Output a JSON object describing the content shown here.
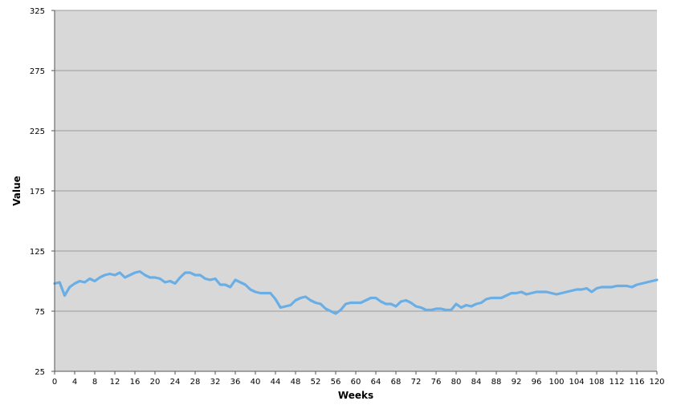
{
  "chart_data": {
    "type": "line",
    "title": "",
    "xlabel": "Weeks",
    "ylabel": "Value",
    "xlim": [
      0,
      120
    ],
    "ylim": [
      25,
      325
    ],
    "xticks": [
      0,
      4,
      8,
      12,
      16,
      20,
      24,
      28,
      32,
      36,
      40,
      44,
      48,
      52,
      56,
      60,
      64,
      68,
      72,
      76,
      80,
      84,
      88,
      92,
      96,
      100,
      104,
      108,
      112,
      116,
      120
    ],
    "yticks": [
      25,
      75,
      125,
      175,
      225,
      275,
      325
    ],
    "grid": "horizontal",
    "legend": "none",
    "colors": {
      "plot_background": "#d8d8d8",
      "line": "#6aaee6",
      "grid": "#9a9a9a"
    },
    "series": [
      {
        "name": "",
        "x": [
          0,
          1,
          2,
          3,
          4,
          5,
          6,
          7,
          8,
          9,
          10,
          11,
          12,
          13,
          14,
          15,
          16,
          17,
          18,
          19,
          20,
          21,
          22,
          23,
          24,
          25,
          26,
          27,
          28,
          29,
          30,
          31,
          32,
          33,
          34,
          35,
          36,
          37,
          38,
          39,
          40,
          41,
          42,
          43,
          44,
          45,
          46,
          47,
          48,
          49,
          50,
          51,
          52,
          53,
          54,
          55,
          56,
          57,
          58,
          59,
          60,
          61,
          62,
          63,
          64,
          65,
          66,
          67,
          68,
          69,
          70,
          71,
          72,
          73,
          74,
          75,
          76,
          77,
          78,
          79,
          80,
          81,
          82,
          83,
          84,
          85,
          86,
          87,
          88,
          89,
          90,
          91,
          92,
          93,
          94,
          95,
          96,
          97,
          98,
          99,
          100,
          101,
          102,
          103,
          104,
          105,
          106,
          107,
          108,
          109,
          110,
          111,
          112,
          113,
          114,
          115,
          116,
          117,
          118,
          119,
          120
        ],
        "values": [
          98,
          99,
          88,
          95,
          98,
          100,
          99,
          102,
          100,
          103,
          105,
          106,
          105,
          107,
          103,
          105,
          107,
          108,
          105,
          103,
          103,
          102,
          99,
          100,
          98,
          103,
          107,
          107,
          105,
          105,
          102,
          101,
          102,
          97,
          97,
          95,
          101,
          99,
          97,
          93,
          91,
          90,
          90,
          90,
          85,
          78,
          79,
          80,
          84,
          86,
          87,
          84,
          82,
          81,
          77,
          75,
          73,
          76,
          81,
          82,
          82,
          82,
          84,
          86,
          86,
          83,
          81,
          81,
          79,
          83,
          84,
          82,
          79,
          78,
          76,
          76,
          77,
          77,
          76,
          76,
          81,
          78,
          80,
          79,
          81,
          82,
          85,
          86,
          86,
          86,
          88,
          90,
          90,
          91,
          89,
          90,
          91,
          91,
          91,
          90,
          89,
          90,
          91,
          92,
          93,
          93,
          94,
          91,
          94,
          95,
          95,
          95,
          96,
          96,
          96,
          95,
          97,
          98,
          99,
          100,
          101
        ]
      }
    ]
  }
}
